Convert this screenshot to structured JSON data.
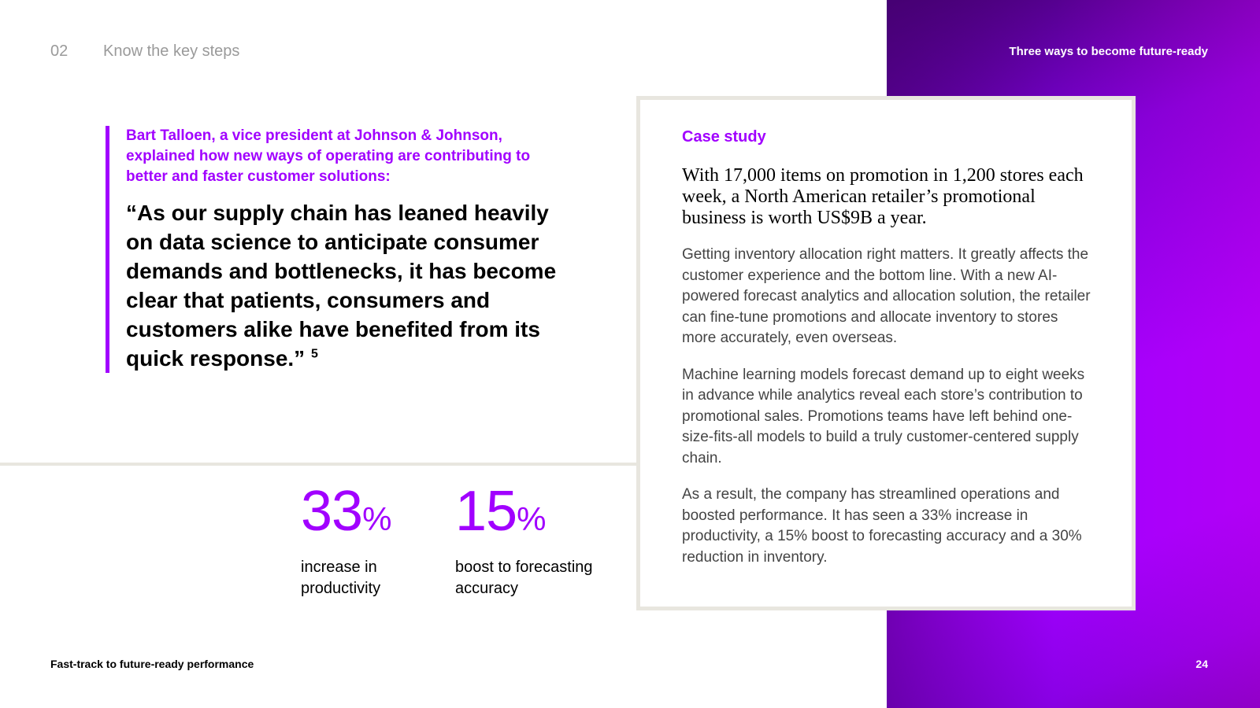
{
  "header": {
    "section_number": "02",
    "section_title": "Know the key steps",
    "right_title": "Three ways to become future-ready"
  },
  "quote": {
    "intro": "Bart Talloen, a vice president at Johnson & Johnson, explained how new ways of operating are contributing to better and faster customer solutions:",
    "text": "“As our supply chain has leaned heavily on data science to anticipate consumer demands and bottlenecks, it has become clear that patients, consumers and customers alike have benefited from its quick response.”",
    "footnote": "5"
  },
  "stats": [
    {
      "value": "33",
      "unit": "%",
      "label": "increase in productivity"
    },
    {
      "value": "15",
      "unit": "%",
      "label": "boost to forecasting accuracy"
    }
  ],
  "case_study": {
    "label": "Case study",
    "lead": "With 17,000 items on promotion in 1,200 stores each week, a North American retailer’s promotional business is worth US$9B a year.",
    "paragraphs": [
      "Getting inventory allocation right matters. It greatly affects the customer experience and the bottom line. With a new AI-powered forecast analytics and allocation solution, the retailer can fine-tune promotions and allocate inventory to stores more accurately, even overseas.",
      "Machine learning models forecast demand up to eight weeks in advance while analytics reveal each store’s contribution to promotional sales. Promotions teams have left behind one-size-fits-all models to build a truly customer-centered supply chain.",
      "As a result, the company has streamlined operations and boosted performance. It has seen a 33% increase in productivity, a 15% boost to forecasting accuracy and a 30% reduction in inventory."
    ]
  },
  "footer": {
    "document_title": "Fast-track to future-ready performance",
    "page_number": "24"
  },
  "colors": {
    "accent": "#a100ff",
    "gradient_dark": "#460073",
    "divider": "#e8e6df"
  }
}
